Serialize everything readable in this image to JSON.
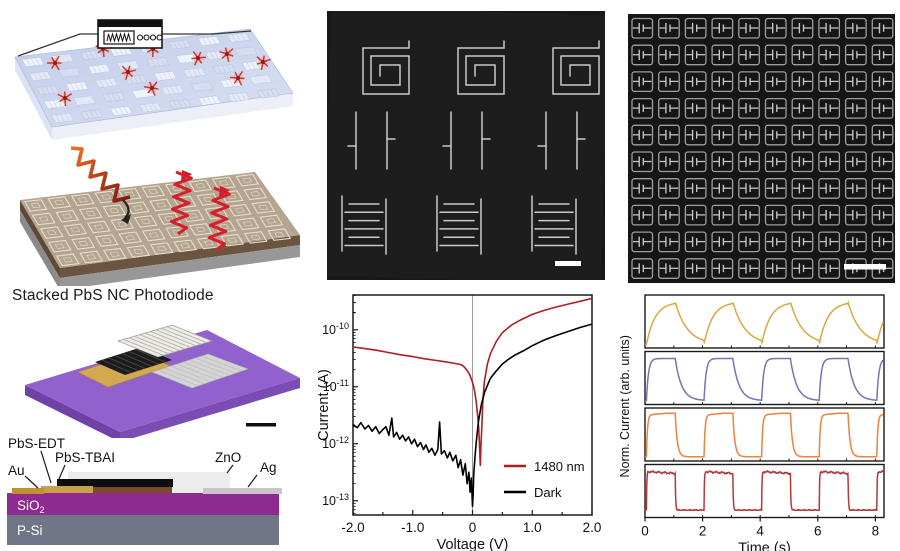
{
  "figure": {
    "photodiode_panel": {
      "title": "Stacked PbS NC Photodiode",
      "cross_section_labels": {
        "pbs_edt": "PbS-EDT",
        "pbs_tbai": "PbS-TBAI",
        "au": "Au",
        "zno": "ZnO",
        "ag": "Ag",
        "sio2_base": "SiO",
        "sio2_sub": "2",
        "psi": "P-Si"
      }
    },
    "colors": {
      "substrate_purple": "#9161cd",
      "substrate_purple_side": "#7a4cb4",
      "sio2": "#8e2a90",
      "psi": "#6e7687",
      "au": "#c2912f",
      "pbs_edt": "#c9a04a",
      "pbs_tbai_body": "#7a4a2b",
      "pbs_black": "#0d0d0d",
      "zno": "#ececec",
      "ag": "#c8c6cb",
      "laser_spot": "#cf3a30",
      "wave_red": "#d41f2c"
    }
  },
  "chart_data": [
    {
      "type": "line",
      "title": "",
      "xlabel": "Voltage (V)",
      "ylabel": "Current (A)",
      "x_range": [
        -2.0,
        2.0
      ],
      "x_ticks": [
        -2.0,
        -1.0,
        0,
        1.0,
        2.0
      ],
      "x_tick_labels": [
        "-2.0",
        "-1.0",
        "0",
        "1.0",
        "2.0"
      ],
      "x_minor_step": 0.5,
      "y_scale": "log",
      "y_top_log10": -9.39,
      "y_bottom_log10": -13.25,
      "y_tick_exponents": [
        -10,
        -11,
        -12,
        -13
      ],
      "zero_line": true,
      "grid": false,
      "legend_position": "inside-right-bottom",
      "legend": [
        {
          "label": "1480 nm",
          "color": "#b01e24"
        },
        {
          "label": "Dark",
          "color": "#000000"
        }
      ],
      "series": [
        {
          "name": "1480 nm",
          "color": "#b01e24",
          "points_x_log10y": [
            [
              -2.0,
              -10.3
            ],
            [
              -1.8,
              -10.33
            ],
            [
              -1.6,
              -10.36
            ],
            [
              -1.4,
              -10.4
            ],
            [
              -1.2,
              -10.44
            ],
            [
              -1.0,
              -10.47
            ],
            [
              -0.8,
              -10.51
            ],
            [
              -0.6,
              -10.54
            ],
            [
              -0.4,
              -10.57
            ],
            [
              -0.3,
              -10.59
            ],
            [
              -0.2,
              -10.61
            ],
            [
              -0.15,
              -10.64
            ],
            [
              -0.1,
              -10.7
            ],
            [
              -0.05,
              -10.78
            ],
            [
              0.0,
              -10.92
            ],
            [
              0.02,
              -11.0
            ],
            [
              0.04,
              -11.1
            ],
            [
              0.06,
              -11.25
            ],
            [
              0.08,
              -11.45
            ],
            [
              0.09,
              -11.55
            ],
            [
              0.105,
              -11.75
            ],
            [
              0.12,
              -12.1
            ],
            [
              0.125,
              -12.25
            ],
            [
              0.13,
              -12.38
            ],
            [
              0.135,
              -12.25
            ],
            [
              0.14,
              -12.05
            ],
            [
              0.16,
              -11.6
            ],
            [
              0.17,
              -11.3
            ],
            [
              0.18,
              -11.15
            ],
            [
              0.19,
              -11.0
            ],
            [
              0.2,
              -10.9
            ],
            [
              0.25,
              -10.6
            ],
            [
              0.3,
              -10.42
            ],
            [
              0.4,
              -10.2
            ],
            [
              0.5,
              -10.05
            ],
            [
              0.65,
              -9.92
            ],
            [
              0.8,
              -9.83
            ],
            [
              1.0,
              -9.73
            ],
            [
              1.2,
              -9.66
            ],
            [
              1.4,
              -9.6
            ],
            [
              1.6,
              -9.55
            ],
            [
              1.8,
              -9.5
            ],
            [
              2.0,
              -9.45
            ]
          ]
        },
        {
          "name": "Dark",
          "color": "#000000",
          "points_x_log10y": [
            [
              -2.0,
              -11.66
            ],
            [
              -1.93,
              -11.72
            ],
            [
              -1.87,
              -11.63
            ],
            [
              -1.8,
              -11.74
            ],
            [
              -1.74,
              -11.68
            ],
            [
              -1.68,
              -11.78
            ],
            [
              -1.62,
              -11.7
            ],
            [
              -1.56,
              -11.82
            ],
            [
              -1.5,
              -11.75
            ],
            [
              -1.45,
              -11.7
            ],
            [
              -1.4,
              -11.85
            ],
            [
              -1.35,
              -11.55
            ],
            [
              -1.32,
              -11.88
            ],
            [
              -1.27,
              -11.8
            ],
            [
              -1.22,
              -11.92
            ],
            [
              -1.17,
              -11.85
            ],
            [
              -1.12,
              -11.95
            ],
            [
              -1.07,
              -11.88
            ],
            [
              -1.02,
              -12.0
            ],
            [
              -0.97,
              -11.92
            ],
            [
              -0.92,
              -12.05
            ],
            [
              -0.87,
              -11.98
            ],
            [
              -0.82,
              -12.1
            ],
            [
              -0.78,
              -12.02
            ],
            [
              -0.73,
              -12.15
            ],
            [
              -0.68,
              -12.08
            ],
            [
              -0.63,
              -12.2
            ],
            [
              -0.58,
              -12.1
            ],
            [
              -0.55,
              -11.62
            ],
            [
              -0.52,
              -12.18
            ],
            [
              -0.47,
              -12.12
            ],
            [
              -0.42,
              -12.25
            ],
            [
              -0.38,
              -12.15
            ],
            [
              -0.33,
              -12.3
            ],
            [
              -0.28,
              -12.2
            ],
            [
              -0.24,
              -12.42
            ],
            [
              -0.2,
              -12.28
            ],
            [
              -0.16,
              -12.55
            ],
            [
              -0.12,
              -12.35
            ],
            [
              -0.09,
              -12.7
            ],
            [
              -0.06,
              -12.5
            ],
            [
              -0.04,
              -12.85
            ],
            [
              -0.02,
              -12.6
            ],
            [
              0.0,
              -13.1
            ],
            [
              0.01,
              -12.9
            ],
            [
              0.02,
              -12.55
            ],
            [
              0.04,
              -12.25
            ],
            [
              0.06,
              -12.0
            ],
            [
              0.1,
              -11.6
            ],
            [
              0.15,
              -11.3
            ],
            [
              0.2,
              -11.1
            ],
            [
              0.3,
              -10.85
            ],
            [
              0.4,
              -10.72
            ],
            [
              0.5,
              -10.6
            ],
            [
              0.6,
              -10.52
            ],
            [
              0.7,
              -10.45
            ],
            [
              0.85,
              -10.37
            ],
            [
              1.0,
              -10.28
            ],
            [
              1.2,
              -10.18
            ],
            [
              1.4,
              -10.1
            ],
            [
              1.6,
              -10.03
            ],
            [
              1.8,
              -9.96
            ],
            [
              2.0,
              -9.9
            ]
          ]
        }
      ]
    },
    {
      "type": "line",
      "title": "",
      "xlabel": "Time (s)",
      "ylabel": "Norm. Current (arb. units)",
      "x_range": [
        0,
        8.3
      ],
      "x_ticks": [
        0,
        2,
        4,
        6,
        8
      ],
      "x_tick_labels": [
        "0",
        "2",
        "4",
        "6",
        "8"
      ],
      "x_minor_step": 1,
      "layout": "4 stacked subpanels, one series each",
      "pulse": {
        "onset_s": 0.05,
        "period_s": 2.0,
        "on_duration_s": 1.0,
        "num_pulses": 4
      },
      "series": [
        {
          "name": "trace-slow-rise-slow-decay",
          "color": "#d9a83f",
          "rise_tau": 0.3,
          "decay_tau": 0.42,
          "top_drift": 0.0,
          "noise": 0.0,
          "base": 0.015,
          "base_noise": 0.0
        },
        {
          "name": "trace-fast-rise-slow-decay",
          "color": "#7f6fb5",
          "rise_tau": 0.07,
          "decay_tau": 0.22,
          "top_drift": 0.0,
          "noise": 0.0,
          "base": 0.02,
          "base_noise": 0.0
        },
        {
          "name": "trace-fast-rise-fast-decay",
          "color": "#ef813d",
          "rise_tau": 0.035,
          "decay_tau": 0.07,
          "top_drift": 0.06,
          "noise": 0.0,
          "base": 0.03,
          "base_noise": 0.0
        },
        {
          "name": "trace-square-noisy",
          "color": "#b5373c",
          "rise_tau": 0.012,
          "decay_tau": 0.015,
          "top_drift": -0.05,
          "noise": 0.03,
          "base": 0.1,
          "base_noise": 0.02
        }
      ]
    }
  ]
}
